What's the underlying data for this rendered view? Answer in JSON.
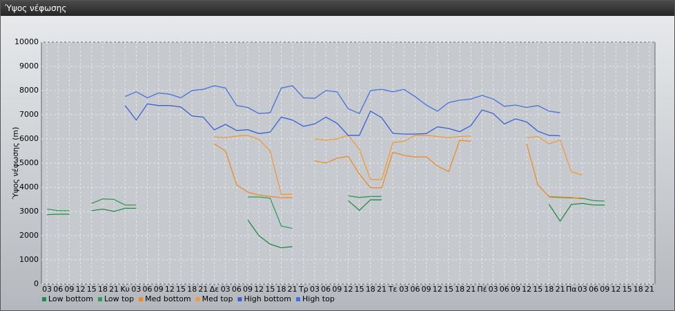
{
  "chart_data": {
    "type": "line",
    "title": "Ύψος νέφωσης",
    "y_label": "Ύψος νέφωσης (m)",
    "categories": [
      "03",
      "06",
      "09",
      "12",
      "15",
      "18",
      "21",
      "Κυ",
      "03",
      "06",
      "09",
      "12",
      "15",
      "18",
      "21",
      "Δε",
      "03",
      "06",
      "09",
      "12",
      "15",
      "18",
      "21",
      "Τρ",
      "03",
      "06",
      "09",
      "12",
      "15",
      "18",
      "21",
      "Τε",
      "03",
      "06",
      "09",
      "12",
      "15",
      "18",
      "21",
      "Πέ",
      "03",
      "06",
      "09",
      "12",
      "15",
      "18",
      "21",
      "Πα",
      "03",
      "06",
      "09",
      "12",
      "15",
      "18",
      "21"
    ],
    "ylim": [
      0,
      10000
    ],
    "yticks": [
      0,
      1000,
      2000,
      3000,
      4000,
      5000,
      6000,
      7000,
      8000,
      9000,
      10000
    ],
    "grid": true,
    "series": [
      {
        "name": "Low bottom",
        "color": "#1f8a4c",
        "values": [
          2870,
          2890,
          2890,
          null,
          3030,
          3100,
          3000,
          3130,
          3130,
          null,
          null,
          null,
          null,
          null,
          null,
          null,
          null,
          null,
          2650,
          2000,
          1650,
          1500,
          1550,
          null,
          null,
          null,
          null,
          3450,
          3050,
          3480,
          3480,
          null,
          null,
          null,
          null,
          null,
          null,
          null,
          null,
          null,
          null,
          null,
          null,
          null,
          null,
          3300,
          2600,
          3290,
          3330,
          3270,
          3270,
          null,
          null,
          null,
          null
        ]
      },
      {
        "name": "Low top",
        "color": "#2e9a5c",
        "values": [
          3100,
          3030,
          3030,
          null,
          3330,
          3520,
          3500,
          3270,
          3270,
          null,
          null,
          null,
          null,
          null,
          null,
          null,
          null,
          null,
          3600,
          3600,
          3550,
          2400,
          2300,
          null,
          null,
          null,
          null,
          3650,
          3580,
          3620,
          3620,
          null,
          null,
          null,
          null,
          null,
          null,
          null,
          null,
          null,
          null,
          null,
          null,
          null,
          null,
          3600,
          3580,
          3560,
          3550,
          3450,
          3430,
          null,
          null,
          null,
          null
        ]
      },
      {
        "name": "Med bottom",
        "color": "#ee8a26",
        "values": [
          null,
          null,
          null,
          null,
          null,
          null,
          null,
          null,
          null,
          null,
          null,
          null,
          null,
          null,
          null,
          5800,
          5500,
          4100,
          3800,
          3680,
          3620,
          3570,
          3580,
          null,
          5100,
          5000,
          5200,
          5280,
          4550,
          3980,
          3980,
          5450,
          5320,
          5250,
          5260,
          4880,
          4650,
          5950,
          5900,
          null,
          null,
          null,
          null,
          5800,
          4100,
          3620,
          3600,
          3580,
          3520,
          null,
          null,
          null,
          null,
          null,
          null
        ]
      },
      {
        "name": "Med top",
        "color": "#f09a3a",
        "values": [
          null,
          null,
          null,
          null,
          null,
          null,
          null,
          null,
          null,
          null,
          null,
          null,
          null,
          null,
          null,
          6080,
          6050,
          6120,
          6150,
          5980,
          5500,
          3700,
          3720,
          null,
          6000,
          5950,
          6000,
          6150,
          5580,
          4320,
          4320,
          5850,
          5900,
          6150,
          6150,
          6100,
          6050,
          6100,
          6120,
          null,
          null,
          null,
          null,
          6050,
          6100,
          5800,
          5950,
          4650,
          4500,
          null,
          null,
          null,
          null,
          null,
          null
        ]
      },
      {
        "name": "High bottom",
        "color": "#3560d6",
        "values": [
          null,
          null,
          null,
          null,
          null,
          null,
          null,
          7380,
          6780,
          7450,
          7380,
          7380,
          7320,
          6950,
          6900,
          6370,
          6600,
          6350,
          6380,
          6220,
          6280,
          6900,
          6780,
          6520,
          6620,
          6900,
          6650,
          6150,
          6150,
          7150,
          6880,
          6230,
          6200,
          6200,
          6220,
          6500,
          6430,
          6300,
          6550,
          7200,
          7050,
          6620,
          6830,
          6700,
          6320,
          6150,
          6130,
          null,
          null,
          null,
          null,
          null,
          null,
          null,
          null
        ]
      },
      {
        "name": "High top",
        "color": "#4470e0",
        "values": [
          null,
          null,
          null,
          null,
          null,
          null,
          null,
          7750,
          7950,
          7700,
          7900,
          7850,
          7700,
          8000,
          8050,
          8200,
          8100,
          7380,
          7300,
          7050,
          7080,
          8100,
          8200,
          7700,
          7680,
          8000,
          7950,
          7250,
          7050,
          8000,
          8050,
          7950,
          8050,
          7750,
          7400,
          7150,
          7500,
          7600,
          7650,
          7800,
          7650,
          7350,
          7400,
          7300,
          7380,
          7150,
          7080,
          null,
          null,
          null,
          null,
          null,
          null,
          null,
          null
        ]
      }
    ]
  }
}
